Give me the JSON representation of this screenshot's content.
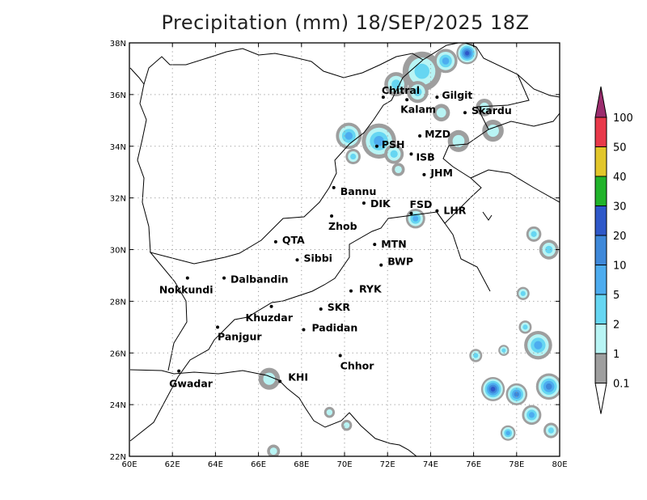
{
  "title": "Precipitation (mm) 18/SEP/2025 18Z",
  "map": {
    "lon_range": [
      60,
      80
    ],
    "lat_range": [
      22,
      38
    ],
    "x_ticks": [
      "60E",
      "62E",
      "64E",
      "66E",
      "68E",
      "70E",
      "72E",
      "74E",
      "76E",
      "78E",
      "80E"
    ],
    "y_ticks": [
      "22N",
      "24N",
      "26N",
      "28N",
      "30N",
      "32N",
      "34N",
      "36N",
      "38N"
    ],
    "gridlines": true
  },
  "cities": [
    {
      "name": "Chitral",
      "lon": 71.8,
      "lat": 35.9,
      "label_dx": -2,
      "label_dy": -4
    },
    {
      "name": "Kalam",
      "lon": 72.9,
      "lat": 35.8,
      "label_dx": -8,
      "label_dy": 16
    },
    {
      "name": "Gilgit",
      "lon": 74.3,
      "lat": 35.9,
      "label_dx": 6,
      "label_dy": 2
    },
    {
      "name": "Skardu",
      "lon": 75.6,
      "lat": 35.3,
      "label_dx": 8,
      "label_dy": 2
    },
    {
      "name": "MZD",
      "lon": 73.5,
      "lat": 34.4,
      "label_dx": 6,
      "label_dy": 2
    },
    {
      "name": "PSH",
      "lon": 71.5,
      "lat": 34.0,
      "label_dx": 6,
      "label_dy": 2
    },
    {
      "name": "ISB",
      "lon": 73.1,
      "lat": 33.7,
      "label_dx": 6,
      "label_dy": 8
    },
    {
      "name": "JHM",
      "lon": 73.7,
      "lat": 32.9,
      "label_dx": 8,
      "label_dy": 2
    },
    {
      "name": "Bannu",
      "lon": 69.5,
      "lat": 32.4,
      "label_dx": 8,
      "label_dy": 9
    },
    {
      "name": "DIK",
      "lon": 70.9,
      "lat": 31.8,
      "label_dx": 8,
      "label_dy": 5
    },
    {
      "name": "FSD",
      "lon": 73.1,
      "lat": 31.4,
      "label_dx": -2,
      "label_dy": -7
    },
    {
      "name": "LHR",
      "lon": 74.3,
      "lat": 31.5,
      "label_dx": 8,
      "label_dy": 4
    },
    {
      "name": "Zhob",
      "lon": 69.4,
      "lat": 31.3,
      "label_dx": -4,
      "label_dy": 17
    },
    {
      "name": "QTA",
      "lon": 66.8,
      "lat": 30.3,
      "label_dx": 8,
      "label_dy": 2
    },
    {
      "name": "MTN",
      "lon": 71.4,
      "lat": 30.2,
      "label_dx": 8,
      "label_dy": 4
    },
    {
      "name": "Sibbi",
      "lon": 67.8,
      "lat": 29.6,
      "label_dx": 8,
      "label_dy": 2
    },
    {
      "name": "BWP",
      "lon": 71.7,
      "lat": 29.4,
      "label_dx": 8,
      "label_dy": 0
    },
    {
      "name": "Nokkundi",
      "lon": 62.7,
      "lat": 28.9,
      "label_dx": -35,
      "label_dy": 19
    },
    {
      "name": "Dalbandin",
      "lon": 64.4,
      "lat": 28.9,
      "label_dx": 8,
      "label_dy": 6
    },
    {
      "name": "RYK",
      "lon": 70.3,
      "lat": 28.4,
      "label_dx": 10,
      "label_dy": 2
    },
    {
      "name": "Khuzdar",
      "lon": 66.6,
      "lat": 27.8,
      "label_dx": -32,
      "label_dy": 18
    },
    {
      "name": "SKR",
      "lon": 68.9,
      "lat": 27.7,
      "label_dx": 8,
      "label_dy": 2
    },
    {
      "name": "Panjgur",
      "lon": 64.1,
      "lat": 27.0,
      "label_dx": 0,
      "label_dy": 16
    },
    {
      "name": "Padidan",
      "lon": 68.1,
      "lat": 26.9,
      "label_dx": 10,
      "label_dy": 2
    },
    {
      "name": "Chhor",
      "lon": 69.8,
      "lat": 25.9,
      "label_dx": 0,
      "label_dy": 17
    },
    {
      "name": "KHI",
      "lon": 67.0,
      "lat": 24.9,
      "label_dx": 10,
      "label_dy": -1
    },
    {
      "name": "Gwadar",
      "lon": 62.3,
      "lat": 25.3,
      "label_dx": -12,
      "label_dy": 20
    }
  ],
  "precip_blobs": [
    {
      "lon": 73.6,
      "lat": 36.9,
      "r": 0.9,
      "level": 2
    },
    {
      "lon": 74.7,
      "lat": 37.3,
      "r": 0.55,
      "level": 3
    },
    {
      "lon": 75.7,
      "lat": 37.6,
      "r": 0.5,
      "level": 5
    },
    {
      "lon": 72.4,
      "lat": 36.4,
      "r": 0.55,
      "level": 2
    },
    {
      "lon": 73.4,
      "lat": 36.1,
      "r": 0.5,
      "level": 2
    },
    {
      "lon": 74.5,
      "lat": 35.3,
      "r": 0.4,
      "level": 1
    },
    {
      "lon": 76.5,
      "lat": 35.5,
      "r": 0.4,
      "level": 1
    },
    {
      "lon": 76.9,
      "lat": 34.6,
      "r": 0.5,
      "level": 1
    },
    {
      "lon": 75.3,
      "lat": 34.2,
      "r": 0.5,
      "level": 1
    },
    {
      "lon": 71.6,
      "lat": 34.2,
      "r": 0.8,
      "level": 3
    },
    {
      "lon": 72.3,
      "lat": 33.7,
      "r": 0.45,
      "level": 2
    },
    {
      "lon": 70.2,
      "lat": 34.4,
      "r": 0.6,
      "level": 3
    },
    {
      "lon": 70.4,
      "lat": 33.6,
      "r": 0.35,
      "level": 2
    },
    {
      "lon": 72.5,
      "lat": 33.1,
      "r": 0.3,
      "level": 1
    },
    {
      "lon": 73.3,
      "lat": 31.2,
      "r": 0.45,
      "level": 3
    },
    {
      "lon": 78.8,
      "lat": 30.6,
      "r": 0.35,
      "level": 2
    },
    {
      "lon": 79.5,
      "lat": 30.0,
      "r": 0.45,
      "level": 2
    },
    {
      "lon": 78.3,
      "lat": 28.3,
      "r": 0.3,
      "level": 2
    },
    {
      "lon": 78.4,
      "lat": 27.0,
      "r": 0.3,
      "level": 2
    },
    {
      "lon": 76.1,
      "lat": 25.9,
      "r": 0.3,
      "level": 2
    },
    {
      "lon": 77.4,
      "lat": 26.1,
      "r": 0.25,
      "level": 2
    },
    {
      "lon": 79.0,
      "lat": 26.3,
      "r": 0.65,
      "level": 3
    },
    {
      "lon": 76.9,
      "lat": 24.6,
      "r": 0.55,
      "level": 5
    },
    {
      "lon": 78.0,
      "lat": 24.4,
      "r": 0.5,
      "level": 4
    },
    {
      "lon": 79.5,
      "lat": 24.7,
      "r": 0.6,
      "level": 4
    },
    {
      "lon": 78.7,
      "lat": 23.6,
      "r": 0.45,
      "level": 3
    },
    {
      "lon": 77.6,
      "lat": 22.9,
      "r": 0.35,
      "level": 3
    },
    {
      "lon": 79.6,
      "lat": 23.0,
      "r": 0.35,
      "level": 2
    },
    {
      "lon": 66.5,
      "lat": 25.0,
      "r": 0.5,
      "level": 1
    },
    {
      "lon": 69.3,
      "lat": 23.7,
      "r": 0.25,
      "level": 1
    },
    {
      "lon": 70.1,
      "lat": 23.2,
      "r": 0.25,
      "level": 1
    },
    {
      "lon": 66.7,
      "lat": 22.2,
      "r": 0.3,
      "level": 1
    }
  ],
  "legend": {
    "labels": [
      "100",
      "50",
      "40",
      "30",
      "20",
      "10",
      "5",
      "2",
      "1",
      "0.1"
    ],
    "colors": [
      "#9b2d6e",
      "#e8394a",
      "#e2c62a",
      "#21b32a",
      "#2e58c9",
      "#3e88d9",
      "#4dacef",
      "#66d6f2",
      "#b8f4f4",
      "#9e9e9e",
      "#ffffff"
    ]
  }
}
